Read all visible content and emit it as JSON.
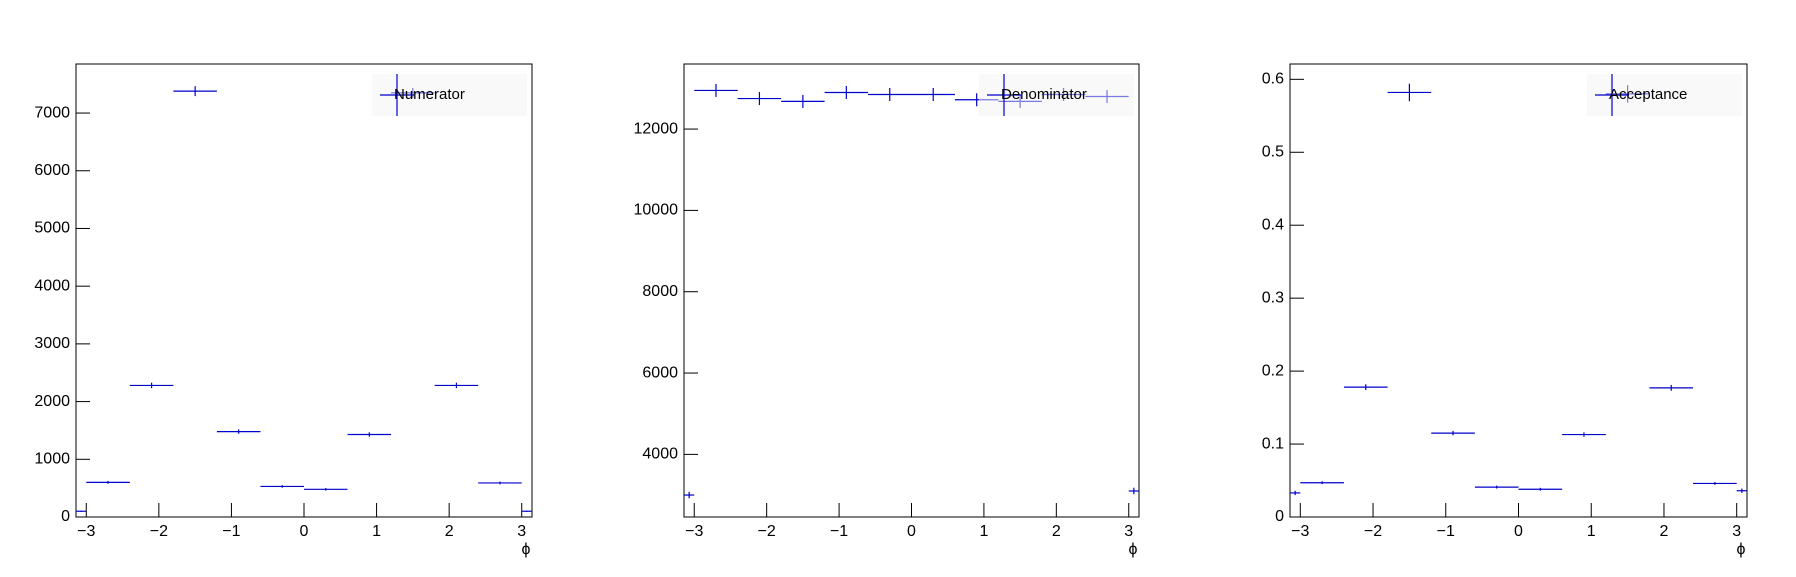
{
  "chart_data": [
    {
      "type": "histogram",
      "xlabel": "ϕ",
      "legend": "top right",
      "bins": [
        -3.1416,
        -3,
        -2.4,
        -1.8,
        -1.2,
        -0.6,
        0,
        0.6,
        1.2,
        1.8,
        2.4,
        3,
        3.1416
      ],
      "series": [
        {
          "name": "Numerator",
          "color": "#0000cc",
          "values": [
            100,
            600,
            2280,
            7380,
            1480,
            530,
            480,
            1430,
            7350,
            2280,
            590,
            100
          ],
          "errors": [
            10,
            25,
            48,
            86,
            38,
            23,
            22,
            38,
            86,
            48,
            24,
            10
          ]
        }
      ],
      "xlim": [
        -3.1416,
        3.1416
      ],
      "xticks": [
        {
          "value": -3,
          "label": "−3"
        },
        {
          "value": -2,
          "label": "−2"
        },
        {
          "value": -1,
          "label": "−1"
        },
        0,
        1,
        2,
        3
      ],
      "ylim": [
        0,
        7850
      ],
      "yticks": [
        0,
        1000,
        2000,
        3000,
        4000,
        5000,
        6000,
        7000
      ]
    },
    {
      "type": "histogram",
      "xlabel": "ϕ",
      "legend": "top right",
      "bins": [
        -3.1416,
        -3,
        -2.4,
        -1.8,
        -1.2,
        -0.6,
        0,
        0.6,
        1.2,
        1.8,
        2.4,
        3,
        3.1416
      ],
      "series": [
        {
          "name": "Denominator",
          "color": "#0000cc",
          "values": [
            3000,
            12950,
            12750,
            12680,
            12900,
            12850,
            12850,
            12720,
            12680,
            12850,
            12800,
            3100
          ],
          "errors": [
            80,
            160,
            160,
            160,
            160,
            160,
            160,
            160,
            160,
            160,
            160,
            80
          ]
        }
      ],
      "xlim": [
        -3.1416,
        3.1416
      ],
      "xticks": [
        {
          "value": -3,
          "label": "−3"
        },
        {
          "value": -2,
          "label": "−2"
        },
        {
          "value": -1,
          "label": "−1"
        },
        0,
        1,
        2,
        3
      ],
      "ylim": [
        2460,
        13600
      ],
      "yticks": [
        4000,
        6000,
        8000,
        10000,
        12000
      ]
    },
    {
      "type": "histogram",
      "xlabel": "ϕ",
      "legend": "top right",
      "bins": [
        -3.1416,
        -3,
        -2.4,
        -1.8,
        -1.2,
        -0.6,
        0,
        0.6,
        1.2,
        1.8,
        2.4,
        3,
        3.1416
      ],
      "series": [
        {
          "name": "Acceptance",
          "color": "#0000cc",
          "values": [
            0.033,
            0.047,
            0.178,
            0.582,
            0.115,
            0.041,
            0.038,
            0.113,
            0.58,
            0.177,
            0.046,
            0.036
          ],
          "errors": [
            0.003,
            0.002,
            0.004,
            0.012,
            0.003,
            0.002,
            0.002,
            0.003,
            0.012,
            0.004,
            0.002,
            0.003
          ]
        }
      ],
      "xlim": [
        -3.1416,
        3.1416
      ],
      "xticks": [
        {
          "value": -3,
          "label": "−3"
        },
        {
          "value": -2,
          "label": "−2"
        },
        {
          "value": -1,
          "label": "−1"
        },
        0,
        1,
        2,
        3
      ],
      "ylim": [
        0,
        0.621
      ],
      "yticks": [
        0,
        0.1,
        0.2,
        0.3,
        0.4,
        0.5,
        0.6
      ]
    }
  ]
}
